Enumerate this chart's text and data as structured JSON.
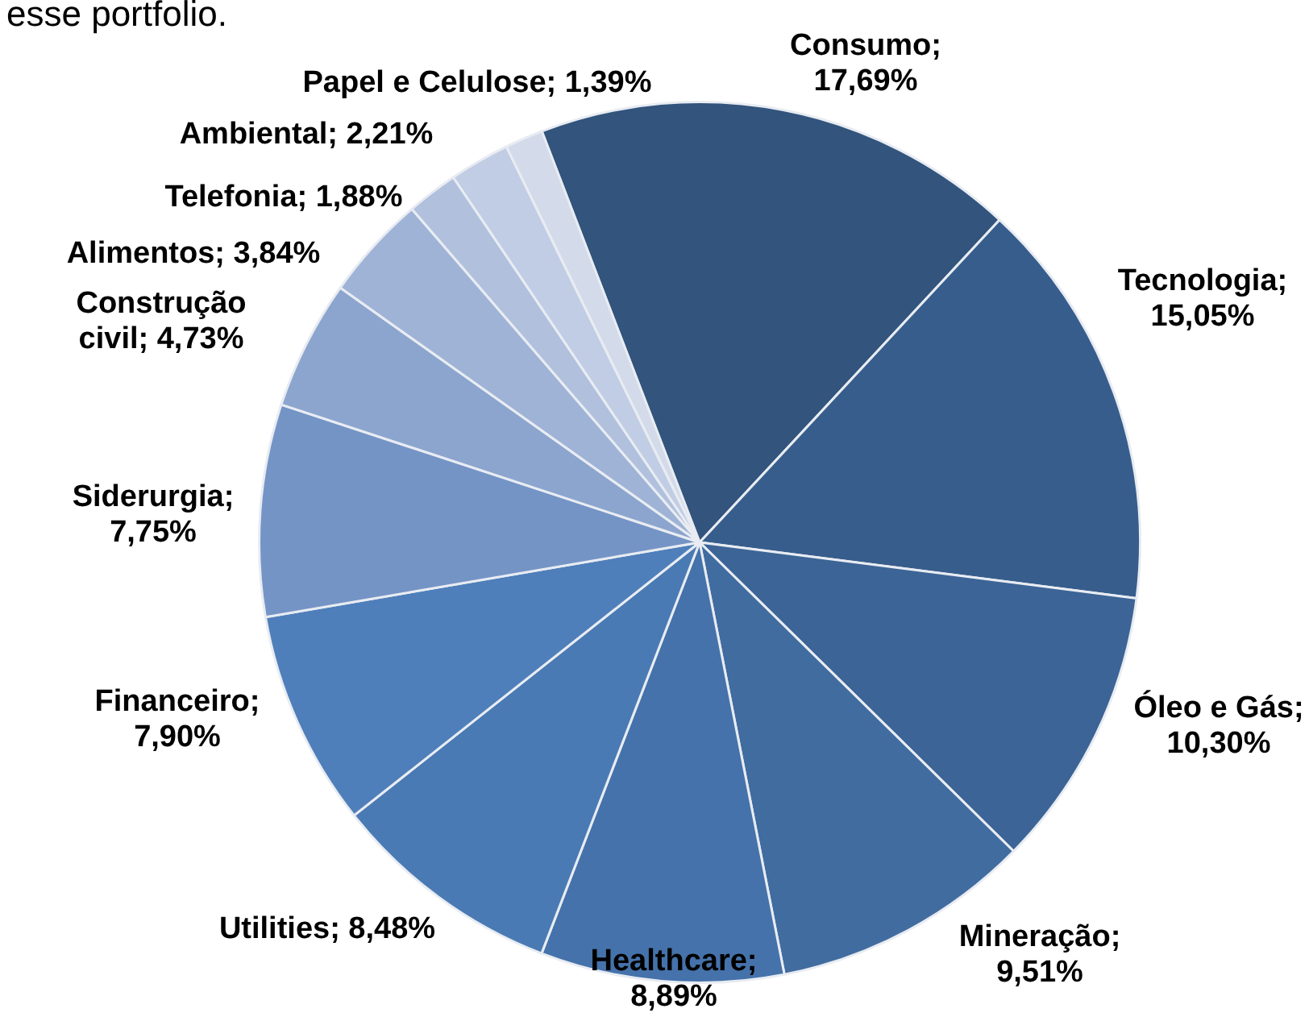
{
  "chart_data": {
    "type": "pie",
    "categories": [
      "Consumo",
      "Tecnologia",
      "Óleo e Gás",
      "Mineração",
      "Healthcare",
      "Utilities",
      "Financeiro",
      "Siderurgia",
      "Construção civil",
      "Alimentos",
      "Telefonia",
      "Ambiental",
      "Papel e Celulose"
    ],
    "values": [
      17.69,
      15.05,
      10.3,
      9.51,
      8.89,
      8.48,
      7.9,
      7.75,
      4.73,
      3.84,
      1.88,
      2.21,
      1.39
    ],
    "value_labels": [
      "; 17,69%",
      "; 15,05%",
      "; 10,30%",
      "; 9,51%",
      "; 8,89%",
      "; 8,48%",
      "; 7,90%",
      "; 7,75%",
      "; 4,73%",
      "; 3,84%",
      "; 1,88%",
      "; 2,21%",
      "; 1,39%"
    ],
    "colors": [
      "#32547d",
      "#375d8c",
      "#3c6496",
      "#416ca0",
      "#4572aa",
      "#4a7ab4",
      "#4f7fba",
      "#7594c6",
      "#8ca5ce",
      "#9fb3d6",
      "#b0c0dd",
      "#c1cde4",
      "#d3daea"
    ],
    "annotations": [
      "esse portfolio."
    ]
  }
}
